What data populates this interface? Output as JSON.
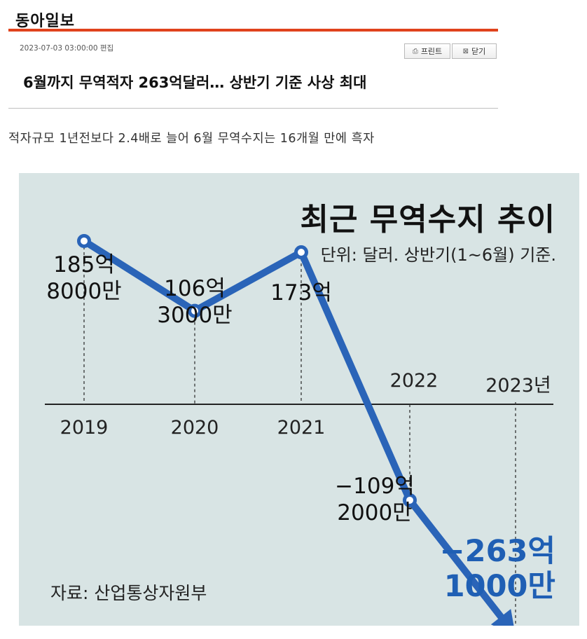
{
  "header": {
    "brand": "동아일보",
    "timestamp": "2023-07-03 03:00:00 편집",
    "print_label": "프린트",
    "close_label": "닫기",
    "headline": "6월까지 무역적자 263억달러… 상반기 기준 사상 최대",
    "subtitle": "적자규모 1년전보다 2.4배로 늘어 6월 무역수지는 16개월 만에 흑자",
    "rule_color": "#e0431d"
  },
  "chart_data": {
    "type": "line",
    "title": "최근 무역수지 추이",
    "unit_note": "단위: 달러. 상반기(1~6월) 기준.",
    "source": "자료: 산업통상자원부",
    "x": [
      "2019",
      "2020",
      "2021",
      "2022",
      "2023년"
    ],
    "values": [
      18580000000,
      10630000000,
      17300000000,
      -10920000000,
      -26310000000
    ],
    "value_labels": [
      [
        "185억",
        "8000만"
      ],
      [
        "106억",
        "3000만"
      ],
      [
        "173억"
      ],
      [
        "−109억",
        "2000만"
      ],
      [
        "−263억",
        "1000만"
      ]
    ],
    "series_color": "#2a64b8",
    "highlight_color": "#1f5fb4",
    "background": "#d8e4e4"
  }
}
